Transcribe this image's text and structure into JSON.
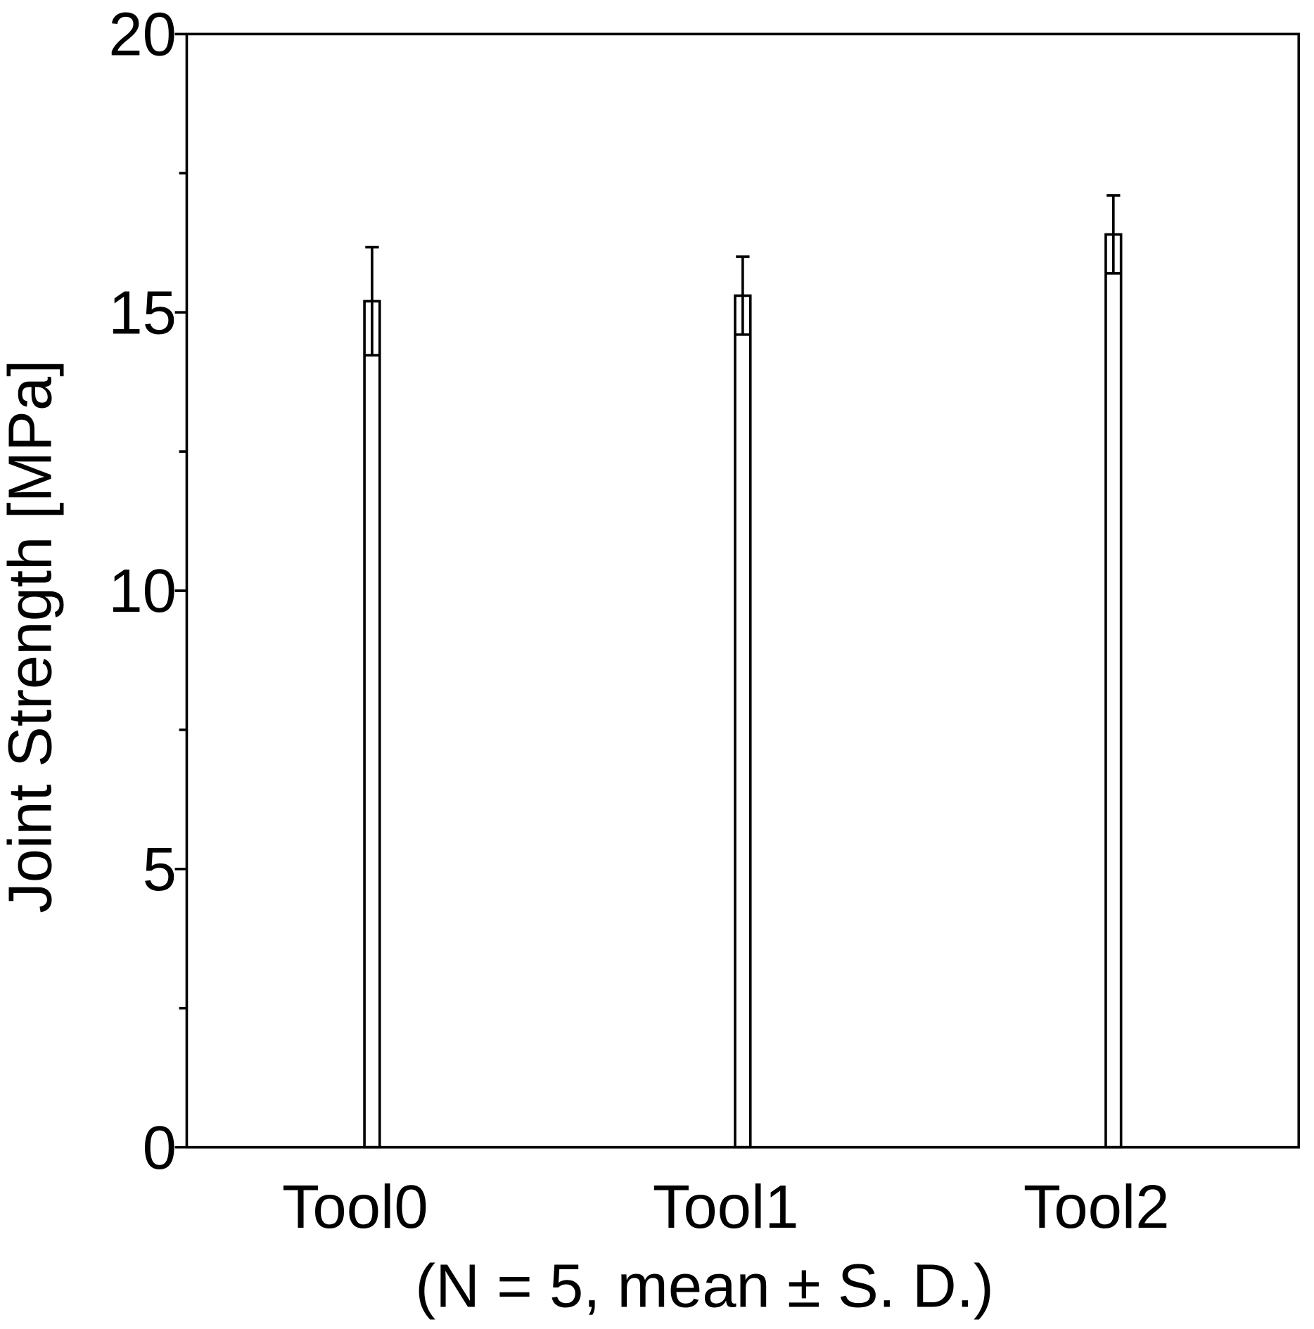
{
  "chart_data": {
    "type": "bar",
    "y_label": "Joint Strength [MPa]",
    "x_label": "(N = 5, mean ± S. D.)",
    "categories": [
      "Tool0",
      "Tool1",
      "Tool2"
    ],
    "values": [
      15.2,
      15.3,
      16.4
    ],
    "errors": [
      0.97,
      0.7,
      0.7
    ],
    "color": "#ffffff",
    "ylim": [
      0,
      20
    ],
    "yticks": [
      0,
      5,
      10,
      15,
      20
    ],
    "minor_yticks": [
      2.5,
      7.5,
      12.5,
      17.5
    ],
    "grid": false
  }
}
